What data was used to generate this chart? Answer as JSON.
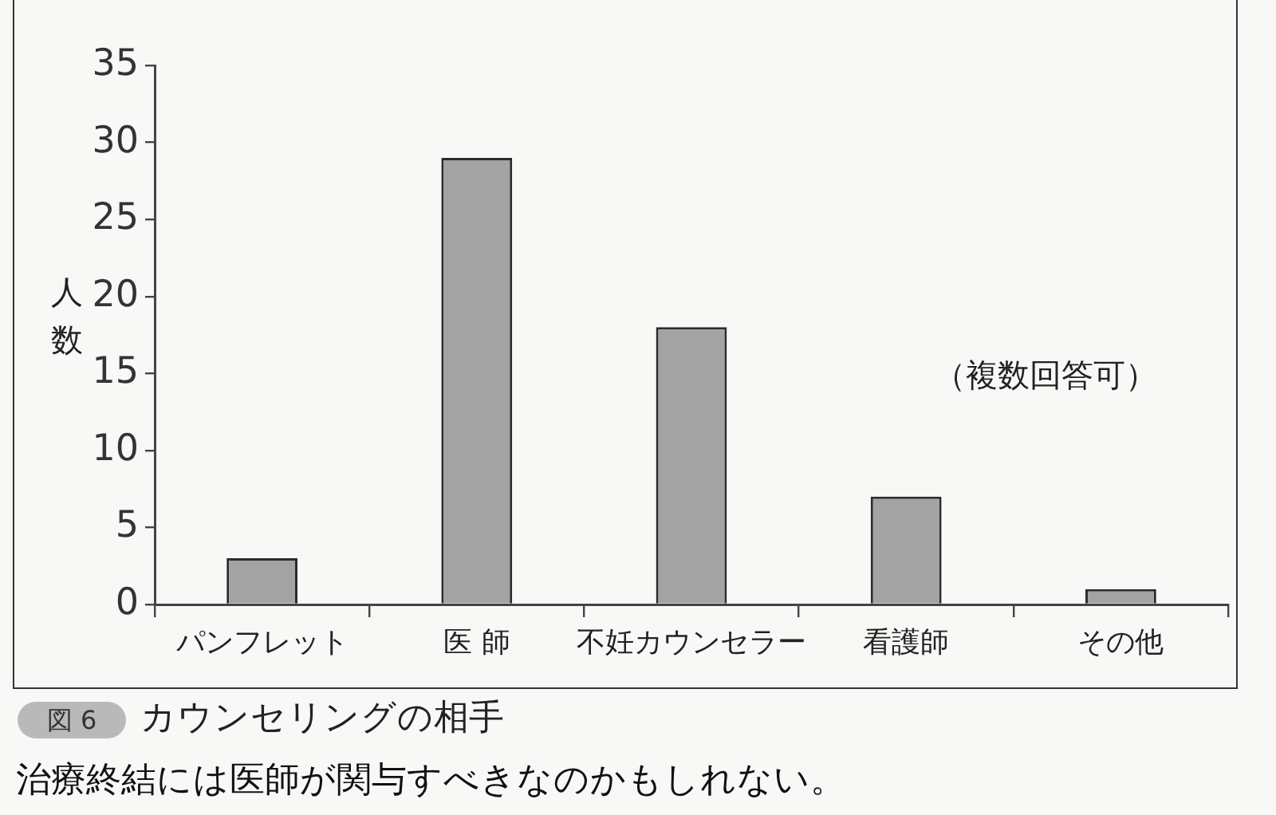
{
  "chart_data": {
    "type": "bar",
    "title": "カウンセリングの相手",
    "subtitle": "治療終結には医師が関与すべきなのかもしれない。",
    "ylabel": "人数",
    "annotations": [
      "（複数回答可）",
      "図 6"
    ],
    "categories": [
      "パンフレット",
      "医 師",
      "不妊カウンセラー",
      "看護師",
      "その他"
    ],
    "values": [
      3,
      29,
      18,
      7,
      1
    ],
    "color": "#a3a3a3",
    "ylim": [
      0,
      35
    ],
    "yticks": [
      0,
      5,
      10,
      15,
      20,
      25,
      30,
      35
    ]
  }
}
